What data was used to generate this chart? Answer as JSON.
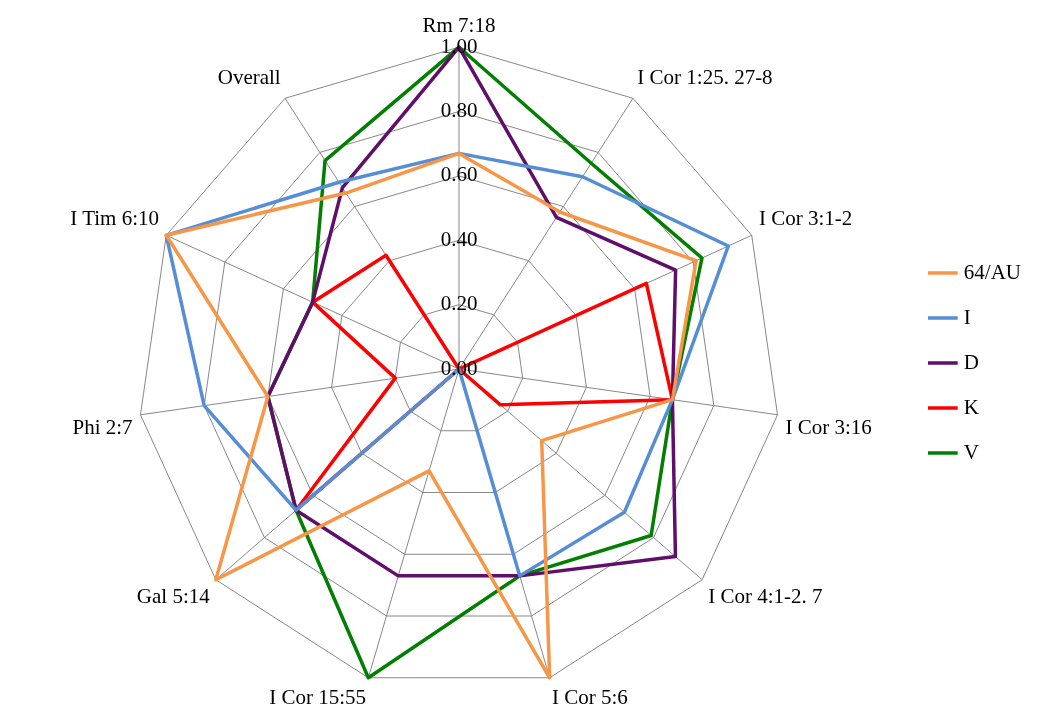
{
  "chart_data": {
    "type": "radar",
    "categories": [
      "Rm 7:18",
      "I Cor 1:25. 27-8",
      "I Cor 3:1-2",
      "I Cor 3:16",
      "I Cor 4:1-2. 7",
      "I Cor 5:6",
      "I Cor 15:55",
      "Gal 5:14",
      "Phi 2:7",
      "I Tim 6:10",
      "Overall"
    ],
    "ylim": [
      0,
      1
    ],
    "yticks": [
      {
        "value": 0,
        "label": "0.00"
      },
      {
        "value": 0.2,
        "label": "0.20"
      },
      {
        "value": 0.4,
        "label": "0.40"
      },
      {
        "value": 0.6,
        "label": "0.60"
      },
      {
        "value": 0.8,
        "label": "0.80"
      },
      {
        "value": 1,
        "label": "1.00"
      }
    ],
    "grid": true,
    "legend": "right",
    "marker": "none",
    "series": [
      {
        "name": "64/AU",
        "color": "#f79646",
        "values": [
          0.67,
          0.58,
          0.81,
          0.67,
          0.34,
          1.0,
          0.33,
          1.0,
          0.6,
          1.0,
          0.65
        ]
      },
      {
        "name": "I",
        "color": "#558ed5",
        "values": [
          0.67,
          0.71,
          0.92,
          0.67,
          0.68,
          0.67,
          0,
          0.67,
          0.8,
          1.0,
          0.69
        ]
      },
      {
        "name": "D",
        "color": "#5f0f6a",
        "values": [
          1.0,
          0.56,
          0.74,
          0.67,
          0.89,
          0.67,
          0.67,
          0.67,
          0.6,
          0.5,
          0.67
        ]
      },
      {
        "name": "K",
        "color": "#ff0000",
        "values": [
          0,
          0,
          0.64,
          0.67,
          0.17,
          0,
          0,
          0.67,
          0.2,
          0.5,
          0.42
        ]
      },
      {
        "name": "V",
        "color": "#007f00",
        "values": [
          1.0,
          0.76,
          0.83,
          0.67,
          0.79,
          0.67,
          1.0,
          0.67,
          0.6,
          0.5,
          0.77
        ]
      }
    ]
  }
}
